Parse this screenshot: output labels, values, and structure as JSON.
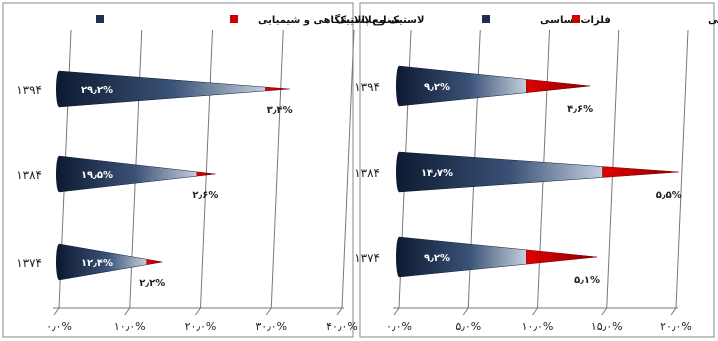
{
  "chart_data": [
    {
      "type": "bar",
      "orientation": "horizontal-stacked-cone",
      "categories": [
        "۱۳۷۴",
        "۱۳۸۴",
        "۱۳۹۴"
      ],
      "series": [
        {
          "name": "صنایع پالایشگاهی و شیمیایی",
          "values": [
            12.4,
            19.5,
            29.2
          ],
          "labels": [
            "۱۲٫۴%",
            "۱۹٫۵%",
            "۲۹٫۲%"
          ],
          "color": "#1f2f4d"
        },
        {
          "name": "لاستیک و پلاستیک",
          "values": [
            2.2,
            2.6,
            3.4
          ],
          "labels": [
            "۲٫۲%",
            "۲٫۶%",
            "۳٫۴%"
          ],
          "color": "#cc0000"
        }
      ],
      "xticks": [
        "۰٫۰%",
        "۱۰٫۰%",
        "۲۰٫۰%",
        "۳۰٫۰%",
        "۴۰٫۰%"
      ],
      "xlim": [
        0,
        40
      ],
      "grid": true,
      "legend": "top"
    },
    {
      "type": "bar",
      "orientation": "horizontal-stacked-cone",
      "categories": [
        "۱۳۷۴",
        "۱۳۸۴",
        "۱۳۹۴"
      ],
      "series": [
        {
          "name": "فلزات اساسی",
          "values": [
            9.2,
            14.7,
            9.2
          ],
          "labels": [
            "۹٫۲%",
            "۱۴٫۷%",
            "۹٫۲%"
          ],
          "color": "#1f2f4d"
        },
        {
          "name": "محصولات فلزی فابریکی",
          "values": [
            5.1,
            5.5,
            4.6
          ],
          "labels": [
            "۵٫۱%",
            "۵٫۵%",
            "۴٫۶%"
          ],
          "color": "#cc0000"
        }
      ],
      "xticks": [
        "۰٫۰%",
        "۵٫۰%",
        "۱۰٫۰%",
        "۱۵٫۰%",
        "۲۰٫۰%"
      ],
      "xlim": [
        0,
        20
      ],
      "grid": true,
      "legend": "top"
    }
  ]
}
